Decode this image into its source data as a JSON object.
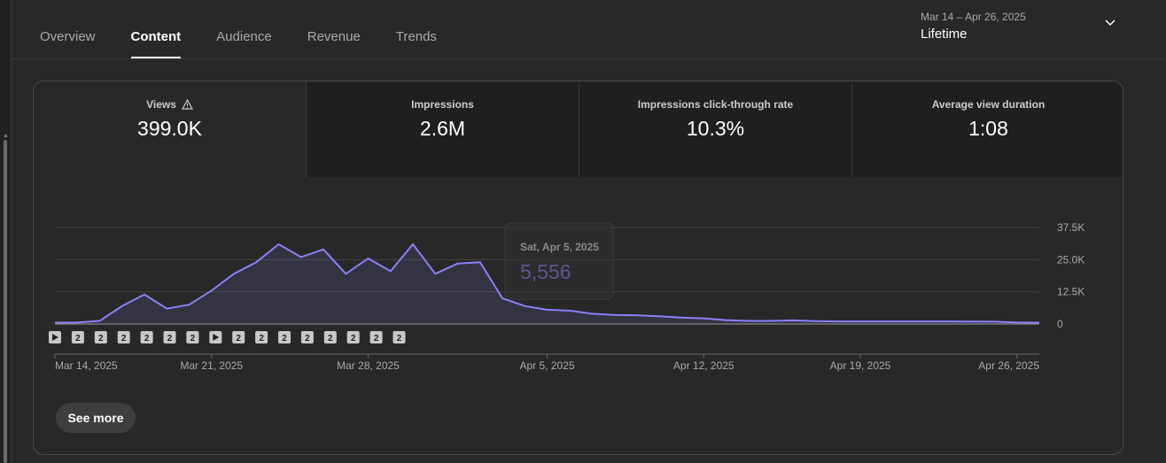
{
  "tabs": [
    "Overview",
    "Content",
    "Audience",
    "Revenue",
    "Trends"
  ],
  "active_tab": "Content",
  "date_picker": {
    "range": "Mar 14 – Apr 26, 2025",
    "label": "Lifetime"
  },
  "metrics": [
    {
      "label": "Views",
      "value": "399.0K",
      "warning": true
    },
    {
      "label": "Impressions",
      "value": "2.6M"
    },
    {
      "label": "Impressions click-through rate",
      "value": "10.3%"
    },
    {
      "label": "Average view duration",
      "value": "1:08"
    }
  ],
  "tooltip": {
    "date": "Sat, Apr 5, 2025",
    "value": "5,556"
  },
  "see_more_label": "See more",
  "colors": {
    "line": "#8b80f9",
    "background": "#282828"
  },
  "markers": [
    "play",
    "2",
    "2",
    "2",
    "2",
    "2",
    "2",
    "play",
    "2",
    "2",
    "2",
    "2",
    "2",
    "2",
    "2",
    "2"
  ],
  "chart_data": {
    "type": "area",
    "x_start": "2025-03-14",
    "x_ticks": [
      "Mar 14, 2025",
      "Mar 21, 2025",
      "Mar 28, 2025",
      "Apr 5, 2025",
      "Apr 12, 2025",
      "Apr 19, 2025",
      "Apr 26, 2025"
    ],
    "y_ticks": [
      "0",
      "12.5K",
      "25.0K",
      "37.5K"
    ],
    "ylim": [
      0,
      37500
    ],
    "series": [
      {
        "values": [
          500,
          600,
          1200,
          7000,
          11500,
          6000,
          7500,
          13000,
          19500,
          24000,
          31000,
          26000,
          29000,
          19500,
          25500,
          20500,
          31000,
          19500,
          23500,
          24000,
          10000,
          7000,
          5556,
          5200,
          4000,
          3500,
          3400,
          3000,
          2500,
          2200,
          1500,
          1200,
          1200,
          1400,
          1100,
          1000,
          1000,
          1000,
          1000,
          1000,
          1000,
          950,
          900,
          600,
          500
        ]
      }
    ]
  }
}
